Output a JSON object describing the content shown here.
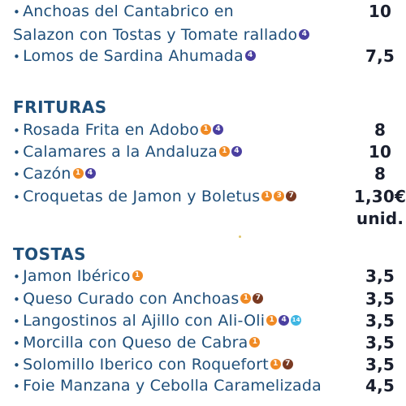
{
  "menu_top": [
    {
      "name": "Anchoas del Cantabrico en",
      "price": "10",
      "bullet": true
    },
    {
      "name": "Salazon con Tostas y Tomate rallado",
      "badges": [
        {
          "n": "4",
          "c": "purple"
        }
      ],
      "price": "",
      "bullet": false
    },
    {
      "name": "Lomos de Sardina Ahumada",
      "badges": [
        {
          "n": "4",
          "c": "purple"
        }
      ],
      "price": "7,5",
      "bullet": true
    }
  ],
  "frituras": {
    "title": "FRITURAS",
    "items": [
      {
        "name": "Rosada Frita en Adobo",
        "badges": [
          {
            "n": "1",
            "c": "orange"
          },
          {
            "n": "4",
            "c": "purple"
          }
        ],
        "price": "8"
      },
      {
        "name": "Calamares a la Andaluza",
        "badges": [
          {
            "n": "1",
            "c": "orange"
          },
          {
            "n": "4",
            "c": "purple"
          }
        ],
        "price": "10"
      },
      {
        "name": "Cazón",
        "badges": [
          {
            "n": "1",
            "c": "orange"
          },
          {
            "n": "4",
            "c": "purple"
          }
        ],
        "price": "8"
      },
      {
        "name": "Croquetas de Jamon y Boletus",
        "badges": [
          {
            "n": "1",
            "c": "orange"
          },
          {
            "n": "3",
            "c": "orange"
          },
          {
            "n": "7",
            "c": "brown"
          }
        ],
        "price": "1,30€"
      }
    ],
    "unit_note": "unid."
  },
  "tostas": {
    "title": "TOSTAS",
    "items": [
      {
        "name": "Jamon Ibérico",
        "badges": [
          {
            "n": "1",
            "c": "orange"
          }
        ],
        "price": "3,5"
      },
      {
        "name": "Queso Curado con Anchoas",
        "badges": [
          {
            "n": "1",
            "c": "orange"
          },
          {
            "n": "7",
            "c": "brown"
          }
        ],
        "price": "3,5"
      },
      {
        "name": "Langostinos al Ajillo con Ali-Oli",
        "badges": [
          {
            "n": "1",
            "c": "orange"
          },
          {
            "n": "4",
            "c": "purple"
          },
          {
            "n": "14",
            "c": "cyan"
          }
        ],
        "price": "3,5"
      },
      {
        "name": "Morcilla con Queso de Cabra",
        "badges": [
          {
            "n": "1",
            "c": "orange"
          }
        ],
        "price": "3,5"
      },
      {
        "name": "Solomillo Iberico con Roquefort",
        "badges": [
          {
            "n": "1",
            "c": "orange"
          },
          {
            "n": "7",
            "c": "brown"
          }
        ],
        "price": "3,5"
      },
      {
        "name": "Foie Manzana y Cebolla Caramelizada",
        "badges": [],
        "price": "4,5"
      }
    ]
  },
  "colors": {
    "orange": "#f08a24",
    "purple": "#4a3fa0",
    "brown": "#7a3a22",
    "cyan": "#3fb6e3"
  }
}
